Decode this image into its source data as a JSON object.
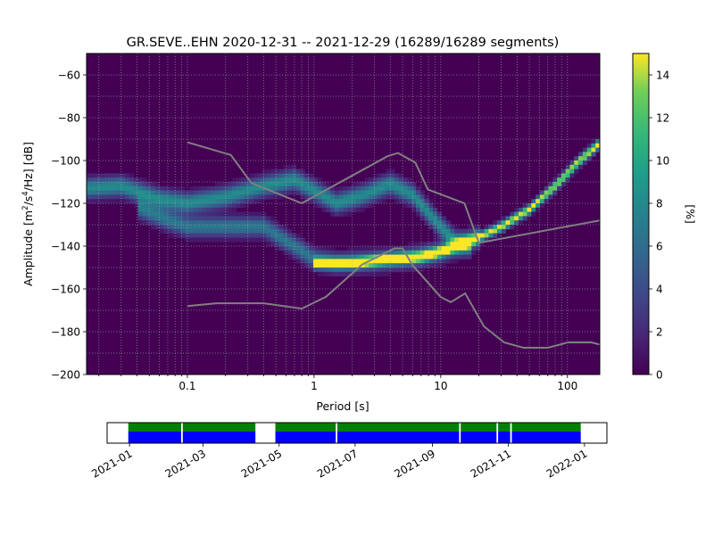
{
  "chart_data": [
    {
      "type": "heatmap",
      "title": "GR.SEVE..EHN   2020-12-31 -- 2021-12-29  (16289/16289 segments)",
      "xlabel": "Period [s]",
      "ylabel_base": "Amplitude [m",
      "ylabel_sup1": "2",
      "ylabel_mid": "/s",
      "ylabel_sup2": "4",
      "ylabel_end": "/Hz] [dB]",
      "xscale": "log",
      "xlim": [
        0.016,
        180
      ],
      "ylim": [
        -200,
        -50
      ],
      "xticks": [
        {
          "v": 0.1,
          "label": "0.1"
        },
        {
          "v": 1,
          "label": "1"
        },
        {
          "v": 10,
          "label": "10"
        },
        {
          "v": 100,
          "label": "100"
        }
      ],
      "yticks": [
        -60,
        -80,
        -100,
        -120,
        -140,
        -160,
        -180,
        -200
      ],
      "grid": true,
      "colorbar": {
        "label": "[%]",
        "min": 0,
        "max": 15,
        "ticks": [
          0,
          2,
          4,
          6,
          8,
          10,
          12,
          14
        ]
      },
      "density_bands": [
        {
          "name": "upper-band",
          "amp": 0.55,
          "width": 4.5,
          "points": [
            [
              0.016,
              -113
            ],
            [
              0.03,
              -112
            ],
            [
              0.06,
              -118
            ],
            [
              0.1,
              -120
            ],
            [
              0.2,
              -117
            ],
            [
              0.4,
              -112
            ],
            [
              0.7,
              -109
            ],
            [
              1,
              -114
            ],
            [
              1.5,
              -120
            ],
            [
              2.5,
              -116
            ],
            [
              4,
              -111
            ],
            [
              6,
              -116
            ],
            [
              9,
              -128
            ],
            [
              13,
              -138
            ],
            [
              18,
              -140
            ]
          ]
        },
        {
          "name": "lower-band",
          "amp": 0.45,
          "width": 4.5,
          "points": [
            [
              0.04,
              -122
            ],
            [
              0.07,
              -128
            ],
            [
              0.1,
              -131
            ],
            [
              0.2,
              -131
            ],
            [
              0.4,
              -131
            ],
            [
              0.7,
              -140
            ],
            [
              1,
              -146
            ],
            [
              1.5,
              -148
            ],
            [
              3,
              -147
            ],
            [
              6,
              -145.5
            ],
            [
              10,
              -143
            ],
            [
              20,
              -136
            ]
          ]
        },
        {
          "name": "peak-curve",
          "amp": 1.0,
          "width": 2.2,
          "points": [
            [
              1,
              -148
            ],
            [
              2,
              -148
            ],
            [
              4,
              -146
            ],
            [
              7,
              -145
            ],
            [
              10,
              -142.5
            ],
            [
              15,
              -139
            ],
            [
              20,
              -136
            ],
            [
              30,
              -131
            ],
            [
              50,
              -123
            ],
            [
              80,
              -112
            ],
            [
              120,
              -101
            ],
            [
              180,
              -92
            ]
          ]
        }
      ],
      "noise_models": [
        {
          "name": "nhnm",
          "points": [
            [
              0.1,
              -91.5
            ],
            [
              0.22,
              -97.4
            ],
            [
              0.32,
              -110.5
            ],
            [
              0.8,
              -120
            ],
            [
              3.8,
              -98
            ],
            [
              4.6,
              -96.5
            ],
            [
              6.3,
              -101
            ],
            [
              7.9,
              -113.5
            ],
            [
              15.4,
              -120
            ],
            [
              20,
              -138.5
            ],
            [
              180,
              -128
            ]
          ]
        },
        {
          "name": "nlnm",
          "points": [
            [
              0.1,
              -168
            ],
            [
              0.17,
              -166.7
            ],
            [
              0.4,
              -166.7
            ],
            [
              0.8,
              -169.2
            ],
            [
              1.24,
              -163.7
            ],
            [
              2.4,
              -148.6
            ],
            [
              4.3,
              -141.1
            ],
            [
              5,
              -141.1
            ],
            [
              6,
              -149
            ],
            [
              10,
              -163.8
            ],
            [
              12,
              -166.2
            ],
            [
              15.6,
              -162.1
            ],
            [
              21.9,
              -177.5
            ],
            [
              31.6,
              -185
            ],
            [
              45,
              -187.5
            ],
            [
              70,
              -187.5
            ],
            [
              101,
              -185
            ],
            [
              154,
              -185
            ],
            [
              180,
              -186
            ]
          ]
        }
      ]
    },
    {
      "type": "timeline",
      "xlim": [
        "2020-12-14",
        "2022-01-19"
      ],
      "xticks": [
        "2021-01",
        "2021-03",
        "2021-05",
        "2021-07",
        "2021-09",
        "2021-11",
        "2022-01"
      ],
      "coverage_segments": [
        [
          "2020-12-31",
          "2021-04-12"
        ],
        [
          "2021-04-28",
          "2021-12-29"
        ]
      ],
      "gap_markers": [
        "2021-02-12",
        "2021-06-16",
        "2021-09-23",
        "2021-10-23",
        "2021-11-03"
      ],
      "colors": {
        "data": "#0000ff",
        "processed": "#008000",
        "gap": "#ffffff"
      }
    }
  ]
}
